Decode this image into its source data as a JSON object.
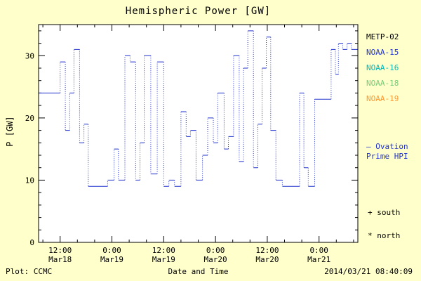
{
  "title": "Hemispheric Power [GW]",
  "footer": {
    "plot_credit": "Plot: CCMC",
    "timestamp": "2014/03/21 08:40:09"
  },
  "legend": {
    "satellites": [
      {
        "label": "METP-02",
        "color": "#000000"
      },
      {
        "label": "NOAA-15",
        "color": "#2233cc"
      },
      {
        "label": "NOAA-16",
        "color": "#00bbbb"
      },
      {
        "label": "NOAA-18",
        "color": "#77cc77"
      },
      {
        "label": "NOAA-19",
        "color": "#ff9933"
      }
    ],
    "ovation": {
      "line1": "— Ovation",
      "line2": "Prime HPI",
      "color": "#2233cc"
    },
    "south_marker": "+ south",
    "north_marker": "* north"
  },
  "chart_data": {
    "type": "line",
    "step": true,
    "title": "Hemispheric Power [GW]",
    "xlabel": "Date and Time",
    "ylabel": "P [GW]",
    "ylim": [
      0,
      35
    ],
    "xlim_hours": [
      7,
      81
    ],
    "y_ticks": [
      0,
      10,
      20,
      30
    ],
    "y_minor_step": 2,
    "x_minor_step_hours": 4,
    "x_ticks": [
      {
        "hours": 12,
        "time": "12:00",
        "date": "Mar18"
      },
      {
        "hours": 24,
        "time": "0:00",
        "date": "Mar19"
      },
      {
        "hours": 36,
        "time": "12:00",
        "date": "Mar19"
      },
      {
        "hours": 48,
        "time": "0:00",
        "date": "Mar20"
      },
      {
        "hours": 60,
        "time": "12:00",
        "date": "Mar20"
      },
      {
        "hours": 72,
        "time": "0:00",
        "date": "Mar21"
      }
    ],
    "line_color": "#2233cc",
    "grid": false,
    "legend_position": "right",
    "series": [
      {
        "name": "Ovation Prime HPI",
        "x_hours": [
          7,
          12,
          13.2,
          14.2,
          15.2,
          16.5,
          17.5,
          18.5,
          21,
          23,
          24.5,
          25.5,
          27,
          28.2,
          29.5,
          30.5,
          31.5,
          33,
          34.5,
          36,
          37.2,
          38.5,
          40,
          41.2,
          42.2,
          43.5,
          45,
          46.2,
          47.5,
          48.5,
          50,
          51,
          52.2,
          53.5,
          54.5,
          55.5,
          56.8,
          57.8,
          58.8,
          59.8,
          60.8,
          62,
          63.5,
          66.5,
          67.5,
          68.5,
          69.5,
          71,
          73.5,
          74.8,
          75.8,
          76.5,
          77.5,
          78.5,
          79.5
        ],
        "values": [
          24,
          29,
          18,
          24,
          31,
          16,
          19,
          9,
          9,
          10,
          15,
          10,
          30,
          29,
          10,
          16,
          30,
          11,
          29,
          9,
          10,
          9,
          21,
          17,
          18,
          10,
          14,
          20,
          16,
          24,
          15,
          17,
          30,
          13,
          28,
          34,
          12,
          19,
          28,
          33,
          18,
          10,
          9,
          9,
          24,
          12,
          9,
          23,
          23,
          31,
          27,
          32,
          31,
          32,
          31
        ]
      }
    ]
  }
}
